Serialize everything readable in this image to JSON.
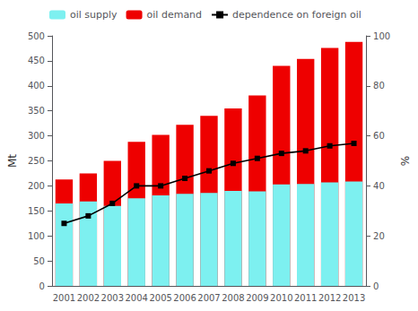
{
  "chart_data": {
    "type": "bar",
    "categories": [
      "2001",
      "2002",
      "2003",
      "2004",
      "2005",
      "2006",
      "2007",
      "2008",
      "2009",
      "2010",
      "2011",
      "2012",
      "2013"
    ],
    "series": [
      {
        "name": "oil supply",
        "color": "#7df0f0",
        "values": [
          165,
          169,
          160,
          175,
          181,
          184,
          186,
          190,
          189,
          203,
          204,
          207,
          209
        ]
      },
      {
        "name": "oil demand",
        "color": "#ee0000",
        "values": [
          213,
          225,
          250,
          288,
          302,
          322,
          340,
          355,
          381,
          440,
          454,
          476,
          488
        ]
      },
      {
        "name": "dependence on foreign oil",
        "color": "#000000",
        "type": "line",
        "axis": "y2",
        "marker": "square",
        "values": [
          25,
          28,
          33,
          40,
          40,
          43,
          46,
          49,
          51,
          53,
          54,
          56,
          57
        ]
      }
    ],
    "ylabel": "Mt",
    "y2label": "%",
    "ylim": [
      0,
      500
    ],
    "yticks": [
      0,
      50,
      100,
      150,
      200,
      250,
      300,
      350,
      400,
      450,
      500
    ],
    "y2lim": [
      0,
      100
    ],
    "y2ticks": [
      0,
      20,
      40,
      60,
      80,
      100
    ],
    "grid": false,
    "legend": "upper left"
  }
}
